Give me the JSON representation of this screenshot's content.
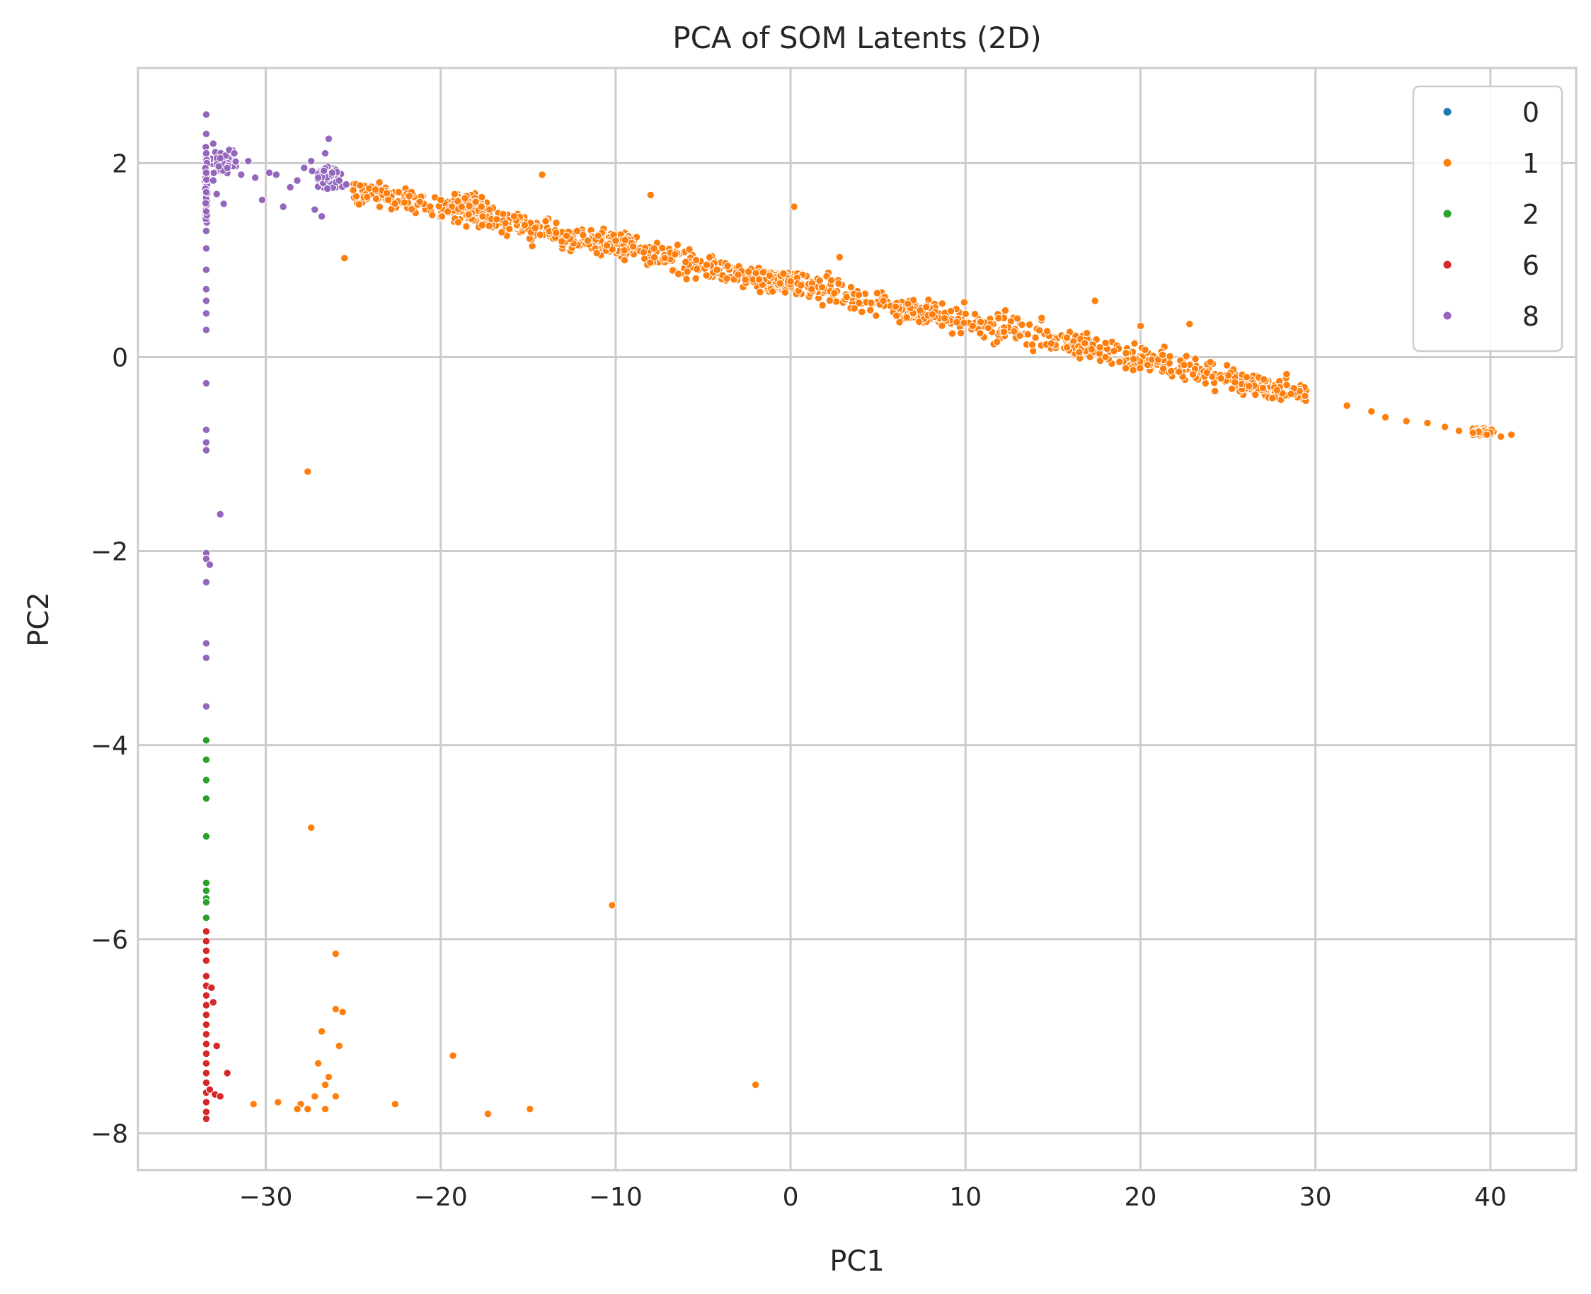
{
  "chart_data": {
    "type": "scatter",
    "title": "PCA of SOM Latents (2D)",
    "xlabel": "PC1",
    "ylabel": "PC2",
    "xlim": [
      -37.3,
      44.9
    ],
    "ylim": [
      -8.38,
      2.98
    ],
    "xticks": [
      -30,
      -20,
      -10,
      0,
      10,
      20,
      30,
      40
    ],
    "yticks": [
      -8,
      -6,
      -4,
      -2,
      0,
      2
    ],
    "xtick_labels": [
      "−30",
      "−20",
      "−10",
      "0",
      "10",
      "20",
      "30",
      "40"
    ],
    "ytick_labels": [
      "−8",
      "−6",
      "−4",
      "−2",
      "0",
      "2"
    ],
    "grid": true,
    "legend_position": "top-right",
    "legend": [
      {
        "name": "0",
        "color": "#1f77b4"
      },
      {
        "name": "1",
        "color": "#ff7f0e"
      },
      {
        "name": "2",
        "color": "#2ca02c"
      },
      {
        "name": "6",
        "color": "#d62728"
      },
      {
        "name": "8",
        "color": "#9467bd"
      }
    ],
    "series": [
      {
        "name": "0",
        "color": "#1f77b4",
        "points": []
      },
      {
        "name": "1",
        "color": "#ff7f0e",
        "points": [
          [
            -25.0,
            1.72
          ],
          [
            -24.2,
            1.65
          ],
          [
            -23.5,
            1.8
          ],
          [
            -23.0,
            1.62
          ],
          [
            -22.4,
            1.7
          ],
          [
            -21.8,
            1.66
          ],
          [
            -21.2,
            1.6
          ],
          [
            -20.6,
            1.55
          ],
          [
            -20.0,
            1.62
          ],
          [
            -19.6,
            1.5
          ],
          [
            -19.2,
            1.68
          ],
          [
            -18.8,
            1.55
          ],
          [
            -18.4,
            1.47
          ],
          [
            -18.0,
            1.6
          ],
          [
            -17.6,
            1.45
          ],
          [
            -17.2,
            1.52
          ],
          [
            -16.8,
            1.42
          ],
          [
            -16.3,
            1.38
          ],
          [
            -15.8,
            1.45
          ],
          [
            -15.2,
            1.36
          ],
          [
            -14.6,
            1.33
          ],
          [
            -14.0,
            1.4
          ],
          [
            -13.4,
            1.28
          ],
          [
            -12.8,
            1.25
          ],
          [
            -12.2,
            1.3
          ],
          [
            -11.6,
            1.2
          ],
          [
            -11.0,
            1.25
          ],
          [
            -10.5,
            1.15
          ],
          [
            -10.0,
            1.2
          ],
          [
            -9.5,
            1.1
          ],
          [
            -9.0,
            1.14
          ],
          [
            -8.4,
            1.08
          ],
          [
            -7.8,
            1.12
          ],
          [
            -7.2,
            1.02
          ],
          [
            -6.6,
            1.06
          ],
          [
            -6.0,
            0.98
          ],
          [
            -5.4,
            1.0
          ],
          [
            -4.8,
            0.95
          ],
          [
            -4.2,
            0.9
          ],
          [
            -3.6,
            0.94
          ],
          [
            -3.0,
            0.85
          ],
          [
            -2.4,
            0.88
          ],
          [
            -1.8,
            0.8
          ],
          [
            -1.2,
            0.84
          ],
          [
            -0.6,
            0.76
          ],
          [
            0.0,
            0.78
          ],
          [
            0.6,
            0.74
          ],
          [
            1.2,
            0.7
          ],
          [
            1.8,
            0.72
          ],
          [
            2.5,
            0.66
          ],
          [
            3.2,
            0.62
          ],
          [
            3.9,
            0.64
          ],
          [
            4.6,
            0.56
          ],
          [
            5.3,
            0.58
          ],
          [
            6.0,
            0.52
          ],
          [
            6.7,
            0.55
          ],
          [
            7.4,
            0.48
          ],
          [
            8.1,
            0.44
          ],
          [
            8.8,
            0.4
          ],
          [
            9.5,
            0.36
          ],
          [
            10.4,
            0.32
          ],
          [
            11.3,
            0.3
          ],
          [
            12.2,
            0.26
          ],
          [
            13.1,
            0.22
          ],
          [
            14.0,
            0.2
          ],
          [
            14.9,
            0.14
          ],
          [
            15.8,
            0.1
          ],
          [
            16.5,
            0.05
          ],
          [
            17.2,
            0.08
          ],
          [
            18.0,
            0.0
          ],
          [
            18.8,
            -0.05
          ],
          [
            19.6,
            -0.02
          ],
          [
            20.4,
            -0.08
          ],
          [
            21.3,
            -0.12
          ],
          [
            22.2,
            -0.15
          ],
          [
            23.0,
            -0.18
          ],
          [
            23.8,
            -0.16
          ],
          [
            24.6,
            -0.22
          ],
          [
            25.4,
            -0.26
          ],
          [
            26.2,
            -0.3
          ],
          [
            27.0,
            -0.32
          ],
          [
            27.8,
            -0.34
          ],
          [
            28.6,
            -0.38
          ],
          [
            29.4,
            -0.4
          ],
          [
            31.8,
            -0.5
          ],
          [
            33.2,
            -0.56
          ],
          [
            34.0,
            -0.62
          ],
          [
            35.2,
            -0.66
          ],
          [
            36.4,
            -0.68
          ],
          [
            37.4,
            -0.72
          ],
          [
            38.2,
            -0.76
          ],
          [
            39.0,
            -0.78
          ],
          [
            39.8,
            -0.8
          ],
          [
            40.6,
            -0.82
          ],
          [
            41.2,
            -0.8
          ],
          [
            -27.6,
            -1.18
          ],
          [
            -27.4,
            -4.85
          ],
          [
            -10.2,
            -5.65
          ],
          [
            -26.0,
            -6.15
          ],
          [
            -26.0,
            -6.72
          ],
          [
            -25.6,
            -6.75
          ],
          [
            -26.8,
            -6.95
          ],
          [
            -25.8,
            -7.1
          ],
          [
            -27.0,
            -7.28
          ],
          [
            -26.4,
            -7.42
          ],
          [
            -26.6,
            -7.5
          ],
          [
            -26.0,
            -7.62
          ],
          [
            -27.2,
            -7.62
          ],
          [
            -28.0,
            -7.7
          ],
          [
            -29.3,
            -7.68
          ],
          [
            -30.7,
            -7.7
          ],
          [
            -27.6,
            -7.75
          ],
          [
            -28.2,
            -7.75
          ],
          [
            -26.6,
            -7.75
          ],
          [
            -22.6,
            -7.7
          ],
          [
            -19.3,
            -7.2
          ],
          [
            -17.3,
            -7.8
          ],
          [
            -14.9,
            -7.75
          ],
          [
            -2.0,
            -7.5
          ],
          [
            -8.0,
            1.67
          ],
          [
            -14.2,
            1.88
          ],
          [
            0.2,
            1.55
          ],
          [
            -25.5,
            1.02
          ],
          [
            2.8,
            1.03
          ],
          [
            17.4,
            0.58
          ],
          [
            20.0,
            0.32
          ],
          [
            22.8,
            0.34
          ]
        ]
      },
      {
        "name": "2",
        "color": "#2ca02c",
        "points": [
          [
            -33.4,
            -3.95
          ],
          [
            -33.4,
            -4.15
          ],
          [
            -33.4,
            -4.36
          ],
          [
            -33.4,
            -4.55
          ],
          [
            -33.4,
            -4.94
          ],
          [
            -33.4,
            -5.42
          ],
          [
            -33.4,
            -5.5
          ],
          [
            -33.4,
            -5.58
          ],
          [
            -33.4,
            -5.62
          ],
          [
            -33.4,
            -5.78
          ]
        ]
      },
      {
        "name": "6",
        "color": "#d62728",
        "points": [
          [
            -33.4,
            -5.92
          ],
          [
            -33.4,
            -6.02
          ],
          [
            -33.4,
            -6.12
          ],
          [
            -33.4,
            -6.22
          ],
          [
            -33.4,
            -6.38
          ],
          [
            -33.4,
            -6.48
          ],
          [
            -33.4,
            -6.58
          ],
          [
            -33.4,
            -6.68
          ],
          [
            -33.4,
            -6.78
          ],
          [
            -33.4,
            -6.88
          ],
          [
            -33.4,
            -6.98
          ],
          [
            -33.4,
            -7.08
          ],
          [
            -33.4,
            -7.18
          ],
          [
            -33.4,
            -7.28
          ],
          [
            -33.4,
            -7.38
          ],
          [
            -33.4,
            -7.48
          ],
          [
            -33.4,
            -7.58
          ],
          [
            -33.4,
            -7.68
          ],
          [
            -33.4,
            -7.78
          ],
          [
            -33.4,
            -7.85
          ],
          [
            -33.1,
            -6.5
          ],
          [
            -33.0,
            -6.65
          ],
          [
            -33.2,
            -7.55
          ],
          [
            -32.9,
            -7.6
          ],
          [
            -32.8,
            -7.1
          ],
          [
            -32.2,
            -7.38
          ],
          [
            -32.6,
            -7.62
          ]
        ]
      },
      {
        "name": "8",
        "color": "#9467bd",
        "points": [
          [
            -33.4,
            2.5
          ],
          [
            -33.4,
            2.3
          ],
          [
            -33.4,
            2.1
          ],
          [
            -33.4,
            1.9
          ],
          [
            -33.4,
            1.7
          ],
          [
            -33.4,
            1.5
          ],
          [
            -33.4,
            1.3
          ],
          [
            -33.4,
            1.12
          ],
          [
            -33.4,
            0.9
          ],
          [
            -33.4,
            0.7
          ],
          [
            -33.4,
            0.58
          ],
          [
            -33.4,
            0.45
          ],
          [
            -33.4,
            0.28
          ],
          [
            -33.4,
            -0.27
          ],
          [
            -33.4,
            -0.75
          ],
          [
            -33.4,
            -0.88
          ],
          [
            -33.4,
            -0.96
          ],
          [
            -33.4,
            -2.02
          ],
          [
            -33.4,
            -2.08
          ],
          [
            -33.4,
            -2.32
          ],
          [
            -33.4,
            -2.95
          ],
          [
            -33.4,
            -3.1
          ],
          [
            -33.4,
            -3.6
          ],
          [
            -33.2,
            -2.14
          ],
          [
            -32.6,
            -1.62
          ],
          [
            -33.0,
            2.2
          ],
          [
            -32.6,
            2.05
          ],
          [
            -32.2,
            1.95
          ],
          [
            -31.8,
            2.1
          ],
          [
            -31.4,
            1.88
          ],
          [
            -31.0,
            2.02
          ],
          [
            -30.6,
            1.85
          ],
          [
            -30.2,
            1.62
          ],
          [
            -29.8,
            1.9
          ],
          [
            -29.4,
            1.88
          ],
          [
            -29.0,
            1.55
          ],
          [
            -28.6,
            1.75
          ],
          [
            -28.2,
            1.82
          ],
          [
            -27.8,
            1.95
          ],
          [
            -27.4,
            2.02
          ],
          [
            -27.0,
            1.85
          ],
          [
            -26.6,
            2.1
          ],
          [
            -26.2,
            1.9
          ],
          [
            -25.8,
            1.82
          ],
          [
            -25.4,
            1.78
          ],
          [
            -26.4,
            2.25
          ],
          [
            -27.2,
            1.52
          ],
          [
            -26.8,
            1.45
          ],
          [
            -32.4,
            1.58
          ],
          [
            -33.0,
            1.82
          ],
          [
            -32.8,
            1.68
          ]
        ]
      }
    ],
    "dense_clusters": [
      {
        "series": "1",
        "cx": -18.4,
        "cy": 1.55,
        "rx": 1.3,
        "ry": 0.16,
        "count": 160
      },
      {
        "series": "1",
        "cx": -10.0,
        "cy": 1.16,
        "rx": 1.4,
        "ry": 0.14,
        "count": 150
      },
      {
        "series": "1",
        "cx": -0.7,
        "cy": 0.78,
        "rx": 1.5,
        "ry": 0.13,
        "count": 160
      },
      {
        "series": "1",
        "cx": 7.6,
        "cy": 0.46,
        "rx": 1.1,
        "ry": 0.12,
        "count": 110
      },
      {
        "series": "1",
        "cx": 16.6,
        "cy": 0.1,
        "rx": 0.9,
        "ry": 0.12,
        "count": 100
      },
      {
        "series": "1",
        "cx": 26.6,
        "cy": -0.3,
        "rx": 1.2,
        "ry": 0.1,
        "count": 120
      },
      {
        "series": "1",
        "cx": 39.6,
        "cy": -0.77,
        "rx": 0.8,
        "ry": 0.05,
        "count": 60
      },
      {
        "series": "1",
        "type": "band",
        "x0": -25.0,
        "y0": 1.72,
        "x1": 29.5,
        "y1": -0.38,
        "spread": 0.12,
        "count": 900
      },
      {
        "series": "8",
        "cx": -26.4,
        "cy": 1.85,
        "rx": 0.9,
        "ry": 0.14,
        "count": 130
      },
      {
        "series": "8",
        "cx": -32.4,
        "cy": 2.0,
        "rx": 0.9,
        "ry": 0.13,
        "count": 90
      },
      {
        "series": "8",
        "cx": -33.4,
        "cy": 1.75,
        "rx": 0.08,
        "ry": 0.45,
        "count": 110
      }
    ]
  }
}
